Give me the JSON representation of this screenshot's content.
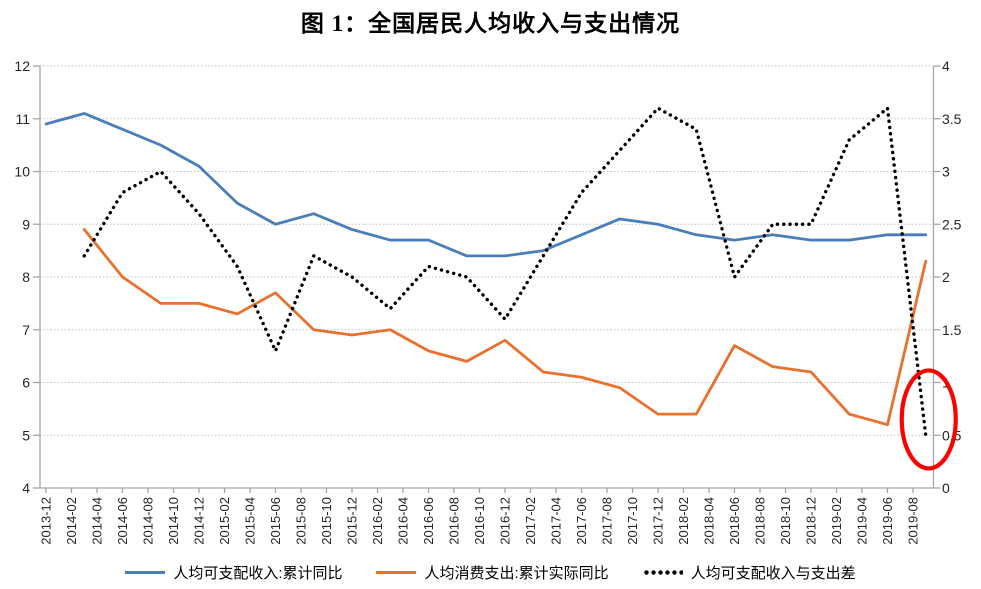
{
  "title": "图 1：全国居民人均收入与支出情况",
  "chart_data": {
    "type": "line",
    "title": "图 1：全国居民人均收入与支出情况",
    "grid": "horizontal-dotted",
    "legend_position": "bottom",
    "x_tick_labels": [
      "2013-12",
      "2014-02",
      "2014-04",
      "2014-06",
      "2014-08",
      "2014-10",
      "2014-12",
      "2015-02",
      "2015-04",
      "2015-06",
      "2015-08",
      "2015-10",
      "2015-12",
      "2016-02",
      "2016-04",
      "2016-06",
      "2016-08",
      "2016-10",
      "2016-12",
      "2017-02",
      "2017-04",
      "2017-06",
      "2017-08",
      "2017-10",
      "2017-12",
      "2018-02",
      "2018-04",
      "2018-06",
      "2018-08",
      "2018-10",
      "2018-12",
      "2019-02",
      "2019-04",
      "2019-06",
      "2019-08"
    ],
    "left_axis": {
      "min": 4,
      "max": 12,
      "step": 1,
      "tick_labels": [
        "12",
        "11",
        "10",
        "9",
        "8",
        "7",
        "6",
        "5",
        "4"
      ]
    },
    "right_axis": {
      "min": 0,
      "max": 4,
      "step": 0.5,
      "tick_labels": [
        "4",
        "3.5",
        "3",
        "2.5",
        "2",
        "1.5",
        "1",
        "0.5",
        "0"
      ]
    },
    "series": [
      {
        "name": "人均可支配收入:累计同比",
        "axis": "left",
        "color": "#4A7EBB",
        "line_style": "solid",
        "x": [
          "2013-12",
          "2014-03",
          "2014-06",
          "2014-09",
          "2014-12",
          "2015-03",
          "2015-06",
          "2015-09",
          "2015-12",
          "2016-03",
          "2016-06",
          "2016-09",
          "2016-12",
          "2017-03",
          "2017-06",
          "2017-09",
          "2017-12",
          "2018-03",
          "2018-06",
          "2018-09",
          "2018-12",
          "2019-03",
          "2019-06",
          "2019-09"
        ],
        "values": [
          10.9,
          11.1,
          10.8,
          10.5,
          10.1,
          9.4,
          9.0,
          9.2,
          8.9,
          8.7,
          8.7,
          8.4,
          8.4,
          8.5,
          8.8,
          9.1,
          9.0,
          8.8,
          8.7,
          8.8,
          8.7,
          8.7,
          8.8,
          8.8
        ]
      },
      {
        "name": "人均消费支出:累计实际同比",
        "axis": "left",
        "color": "#E8712E",
        "line_style": "solid",
        "x": [
          "2014-03",
          "2014-06",
          "2014-09",
          "2014-12",
          "2015-03",
          "2015-06",
          "2015-09",
          "2015-12",
          "2016-03",
          "2016-06",
          "2016-09",
          "2016-12",
          "2017-03",
          "2017-06",
          "2017-09",
          "2017-12",
          "2018-03",
          "2018-06",
          "2018-09",
          "2018-12",
          "2019-03",
          "2019-06",
          "2019-09"
        ],
        "values": [
          8.9,
          8.0,
          7.5,
          7.5,
          7.3,
          7.7,
          7.0,
          6.9,
          7.0,
          6.6,
          6.4,
          6.8,
          6.2,
          6.1,
          5.9,
          5.4,
          5.4,
          6.7,
          6.3,
          6.2,
          5.4,
          5.2,
          8.3
        ]
      },
      {
        "name": "人均可支配收入与支出差",
        "axis": "right",
        "color": "#000000",
        "line_style": "dotted",
        "x": [
          "2014-03",
          "2014-06",
          "2014-09",
          "2014-12",
          "2015-03",
          "2015-06",
          "2015-09",
          "2015-12",
          "2016-03",
          "2016-06",
          "2016-09",
          "2016-12",
          "2017-03",
          "2017-06",
          "2017-09",
          "2017-12",
          "2018-03",
          "2018-06",
          "2018-09",
          "2018-12",
          "2019-03",
          "2019-06",
          "2019-09"
        ],
        "values": [
          2.2,
          2.8,
          3.0,
          2.6,
          2.1,
          1.3,
          2.2,
          2.0,
          1.7,
          2.1,
          2.0,
          1.6,
          2.2,
          2.8,
          3.2,
          3.6,
          3.4,
          2.0,
          2.5,
          2.5,
          3.3,
          3.6,
          0.5
        ]
      }
    ],
    "annotation": {
      "shape": "ellipse",
      "color": "#FF0000",
      "x": "2019-09",
      "y_right_axis": 0.65,
      "meaning": "highlights sharp drop of income-expenditure gap at end of series"
    }
  },
  "legend": {
    "items": [
      {
        "label": "人均可支配收入:累计同比"
      },
      {
        "label": "人均消费支出:累计实际同比"
      },
      {
        "label": "人均可支配收入与支出差"
      }
    ]
  }
}
